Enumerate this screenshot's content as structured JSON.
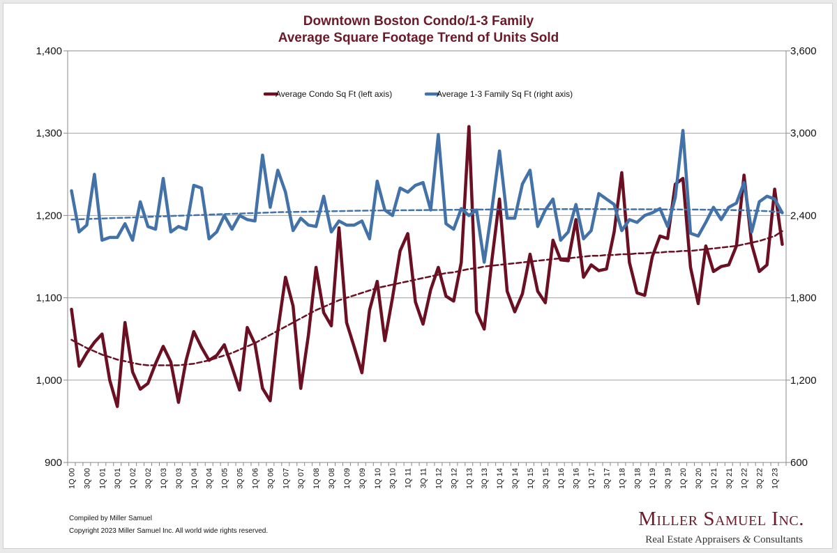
{
  "chart_data": {
    "type": "line",
    "title": [
      "Downtown Boston Condo/1-3 Family",
      "Average Square Footage Trend of Units Sold"
    ],
    "categories": [
      "1Q 00",
      "2Q 00",
      "3Q 00",
      "4Q 00",
      "1Q 01",
      "2Q 01",
      "3Q 01",
      "4Q 01",
      "1Q 02",
      "2Q 02",
      "3Q 02",
      "4Q 02",
      "1Q 03",
      "2Q 03",
      "3Q 03",
      "4Q 03",
      "1Q 04",
      "2Q 04",
      "3Q 04",
      "4Q 04",
      "1Q 05",
      "2Q 05",
      "3Q 05",
      "4Q 05",
      "1Q 06",
      "2Q 06",
      "3Q 06",
      "4Q 06",
      "1Q 07",
      "2Q 07",
      "3Q 07",
      "4Q 07",
      "1Q 08",
      "2Q 08",
      "3Q 08",
      "4Q 08",
      "1Q 09",
      "2Q 09",
      "3Q 09",
      "4Q 09",
      "1Q 10",
      "2Q 10",
      "3Q 10",
      "4Q 10",
      "1Q 11",
      "2Q 11",
      "3Q 11",
      "4Q 11",
      "1Q 12",
      "2Q 12",
      "3Q 12",
      "4Q 12",
      "1Q 13",
      "2Q 13",
      "3Q 13",
      "4Q 13",
      "1Q 14",
      "2Q 14",
      "3Q 14",
      "4Q 14",
      "1Q 15",
      "2Q 15",
      "3Q 15",
      "4Q 15",
      "1Q 16",
      "2Q 16",
      "3Q 16",
      "4Q 16",
      "1Q 17",
      "2Q 17",
      "3Q 17",
      "4Q 17",
      "1Q 18",
      "2Q 18",
      "3Q 18",
      "4Q 18",
      "1Q 19",
      "2Q 19",
      "3Q 19",
      "4Q 19",
      "1Q 20",
      "2Q 20",
      "3Q 20",
      "4Q 20",
      "1Q 21",
      "2Q 21",
      "3Q 21",
      "4Q 21",
      "1Q 22",
      "2Q 22",
      "3Q 22",
      "4Q 22",
      "1Q 23",
      "2Q 23"
    ],
    "tick_labels_shown": [
      "1Q 00",
      "3Q 00",
      "1Q 01",
      "3Q 01",
      "1Q 02",
      "3Q 02",
      "1Q 03",
      "3Q 03",
      "1Q 04",
      "3Q 04",
      "1Q 05",
      "3Q 05",
      "1Q 06",
      "3Q 06",
      "1Q 07",
      "3Q 07",
      "1Q 08",
      "3Q 08",
      "1Q 09",
      "3Q 09",
      "1Q 10",
      "3Q 10",
      "1Q 11",
      "3Q 11",
      "1Q 12",
      "3Q 12",
      "1Q 13",
      "3Q 13",
      "1Q 14",
      "3Q 14",
      "1Q 15",
      "3Q 15",
      "1Q 16",
      "3Q 16",
      "1Q 17",
      "3Q 17",
      "1Q 18",
      "3Q 18",
      "1Q 19",
      "3Q 19",
      "1Q 20",
      "3Q 20",
      "1Q 21",
      "3Q 21",
      "1Q 22",
      "3Q 22",
      "1Q 23"
    ],
    "y_left": {
      "min": 900,
      "max": 1400,
      "ticks": [
        "900",
        "1,000",
        "1,100",
        "1,200",
        "1,300",
        "1,400"
      ]
    },
    "y_right": {
      "min": 600,
      "max": 3600,
      "ticks": [
        "600",
        "1,200",
        "1,800",
        "2,400",
        "3,000",
        "3,600"
      ]
    },
    "series": [
      {
        "name": "Average Condo Sq Ft (left axis)",
        "axis": "left",
        "color": "#6b0f22",
        "values": [
          1086,
          1017,
          1033,
          1046,
          1056,
          1000,
          968,
          1070,
          1010,
          989,
          996,
          1020,
          1041,
          1022,
          973,
          1024,
          1059,
          1040,
          1024,
          1030,
          1043,
          1016,
          988,
          1064,
          1044,
          990,
          975,
          1060,
          1125,
          1090,
          990,
          1055,
          1137,
          1082,
          1066,
          1185,
          1070,
          1040,
          1009,
          1085,
          1120,
          1048,
          1100,
          1157,
          1178,
          1095,
          1068,
          1110,
          1137,
          1102,
          1096,
          1143,
          1308,
          1083,
          1062,
          1145,
          1220,
          1108,
          1083,
          1105,
          1153,
          1108,
          1094,
          1170,
          1146,
          1145,
          1195,
          1125,
          1140,
          1133,
          1135,
          1180,
          1252,
          1143,
          1106,
          1103,
          1150,
          1175,
          1172,
          1238,
          1245,
          1137,
          1093,
          1163,
          1132,
          1138,
          1140,
          1163,
          1249,
          1165,
          1132,
          1140,
          1232,
          1165
        ]
      },
      {
        "name": "Average 1-3 Family Sq Ft (right axis)",
        "axis": "right",
        "color": "#4272a8",
        "values": [
          2580,
          2280,
          2330,
          2700,
          2220,
          2240,
          2240,
          2340,
          2220,
          2500,
          2320,
          2300,
          2670,
          2280,
          2320,
          2300,
          2620,
          2600,
          2230,
          2280,
          2400,
          2300,
          2400,
          2370,
          2360,
          2840,
          2460,
          2730,
          2570,
          2290,
          2380,
          2330,
          2320,
          2540,
          2280,
          2360,
          2330,
          2330,
          2360,
          2230,
          2650,
          2440,
          2400,
          2600,
          2570,
          2620,
          2640,
          2440,
          2990,
          2340,
          2300,
          2450,
          2400,
          2440,
          2060,
          2440,
          2870,
          2380,
          2380,
          2630,
          2730,
          2320,
          2440,
          2520,
          2220,
          2280,
          2480,
          2230,
          2290,
          2560,
          2520,
          2480,
          2290,
          2370,
          2350,
          2400,
          2420,
          2450,
          2320,
          2530,
          3020,
          2270,
          2250,
          2350,
          2460,
          2370,
          2460,
          2490,
          2640,
          2280,
          2500,
          2540,
          2520,
          2420
        ]
      },
      {
        "name": "",
        "axis": "left",
        "color": "#6b0f22",
        "dashed": true,
        "trend_of": "Average Condo Sq Ft (left axis)",
        "values": [
          1049,
          1044,
          1039,
          1035,
          1031,
          1028,
          1025,
          1023,
          1021,
          1019,
          1018,
          1018,
          1018,
          1018,
          1018,
          1019,
          1020,
          1022,
          1024,
          1027,
          1030,
          1033,
          1037,
          1041,
          1045,
          1050,
          1055,
          1060,
          1065,
          1070,
          1075,
          1080,
          1085,
          1089,
          1093,
          1097,
          1100,
          1103,
          1106,
          1109,
          1112,
          1114,
          1116,
          1118,
          1120,
          1122,
          1124,
          1126,
          1128,
          1130,
          1131,
          1133,
          1135,
          1136,
          1138,
          1139,
          1140,
          1141,
          1142,
          1143,
          1144,
          1145,
          1146,
          1147,
          1148,
          1148,
          1149,
          1150,
          1151,
          1151,
          1152,
          1152,
          1153,
          1153,
          1154,
          1154,
          1155,
          1155,
          1156,
          1156,
          1157,
          1157,
          1158,
          1159,
          1160,
          1161,
          1162,
          1163,
          1165,
          1167,
          1169,
          1172,
          1175,
          1181
        ]
      },
      {
        "name": "",
        "axis": "right",
        "color": "#4272a8",
        "dashed": true,
        "trend_of": "Average 1-3 Family Sq Ft (right axis)",
        "values": [
          2370,
          2372,
          2374,
          2376,
          2378,
          2380,
          2382,
          2384,
          2386,
          2388,
          2390,
          2392,
          2394,
          2396,
          2398,
          2400,
          2402,
          2404,
          2406,
          2408,
          2410,
          2412,
          2414,
          2416,
          2418,
          2420,
          2422,
          2424,
          2425,
          2426,
          2427,
          2428,
          2429,
          2430,
          2431,
          2432,
          2433,
          2434,
          2435,
          2436,
          2436,
          2437,
          2437,
          2438,
          2438,
          2439,
          2439,
          2440,
          2440,
          2441,
          2441,
          2442,
          2442,
          2443,
          2443,
          2444,
          2444,
          2444,
          2445,
          2445,
          2445,
          2446,
          2446,
          2446,
          2446,
          2446,
          2446,
          2446,
          2446,
          2446,
          2446,
          2446,
          2445,
          2445,
          2445,
          2445,
          2445,
          2444,
          2444,
          2444,
          2443,
          2443,
          2443,
          2442,
          2442,
          2441,
          2440,
          2439,
          2438,
          2436,
          2434,
          2432,
          2428,
          2420
        ]
      }
    ],
    "legend_position": "top-center",
    "grid": {
      "horizontal": true,
      "vertical": false
    }
  },
  "footer": {
    "compiled": "Compiled by Miller Samuel",
    "copyright": "Copyright 2023 Miller Samuel Inc.  All world wide rights reserved."
  },
  "logo": {
    "name": "Miller Samuel Inc.",
    "tagline_pre": "Real Estate Appraisers ",
    "tagline_amp": "&",
    "tagline_post": " Consultants"
  }
}
